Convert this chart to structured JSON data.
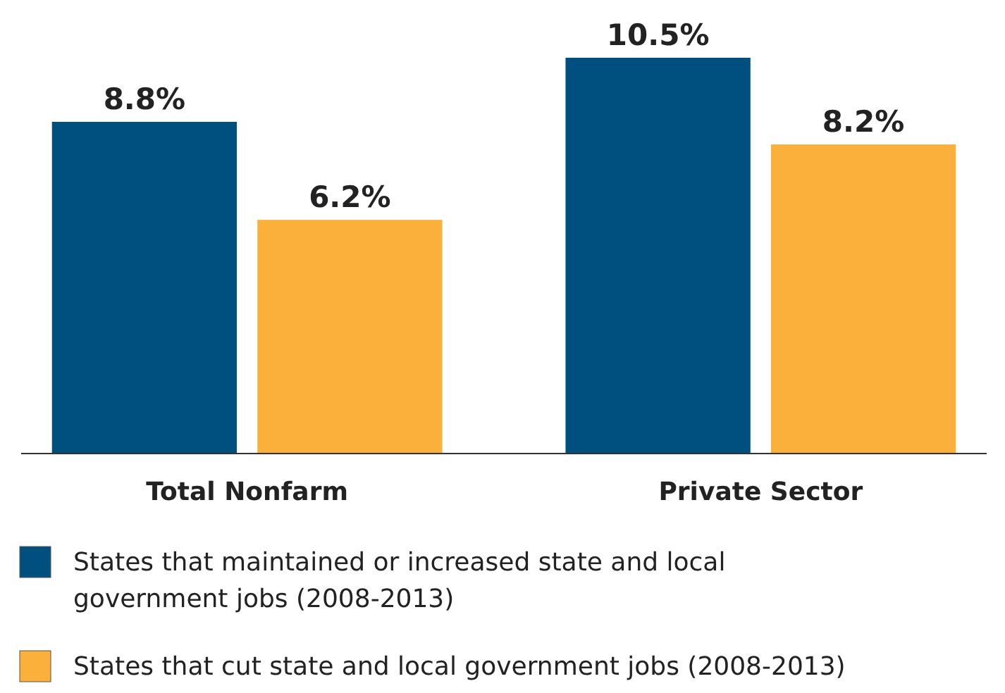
{
  "chart_data": {
    "type": "bar",
    "categories": [
      "Total Nonfarm",
      "Private Sector"
    ],
    "series": [
      {
        "name": "States that maintained or increased state and local government jobs (2008-2013)",
        "color": "#00507f",
        "values": [
          8.8,
          10.5
        ],
        "value_labels": [
          "8.8%",
          "10.5%"
        ]
      },
      {
        "name": "States that cut state and local government jobs (2008-2013)",
        "color": "#fbb03b",
        "values": [
          6.2,
          8.2
        ],
        "value_labels": [
          "6.2%",
          "8.2%"
        ]
      }
    ],
    "legend": "bottom",
    "tick_labels": "x"
  }
}
